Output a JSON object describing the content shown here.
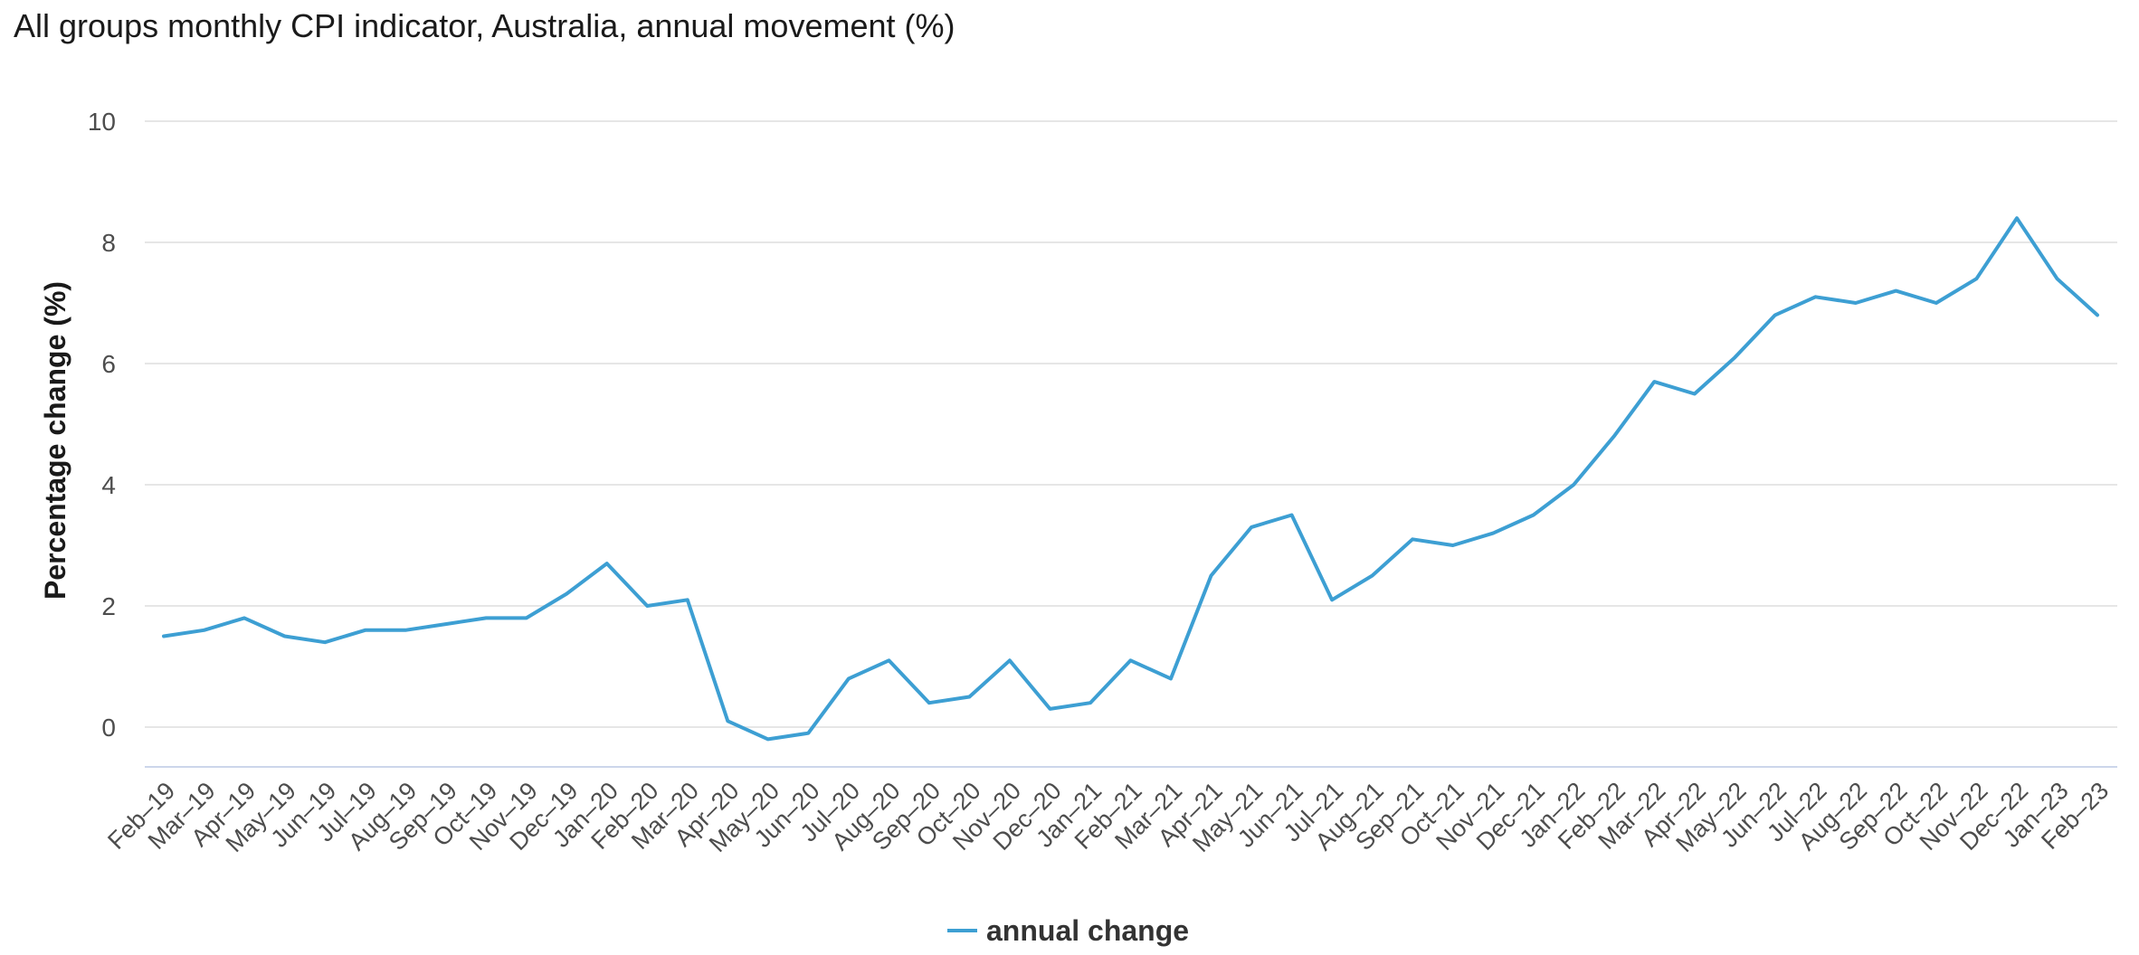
{
  "chart_data": {
    "type": "line",
    "title": "All groups monthly CPI indicator, Australia, annual movement (%)",
    "ylabel": "Percentage change (%)",
    "xlabel": "",
    "ylim": [
      -0.6,
      10
    ],
    "yticks": [
      0,
      2,
      4,
      6,
      8,
      10
    ],
    "grid": true,
    "legend_position": "bottom-center",
    "categories": [
      "Feb–19",
      "Mar–19",
      "Apr–19",
      "May–19",
      "Jun–19",
      "Jul–19",
      "Aug–19",
      "Sep–19",
      "Oct–19",
      "Nov–19",
      "Dec–19",
      "Jan–20",
      "Feb–20",
      "Mar–20",
      "Apr–20",
      "May–20",
      "Jun–20",
      "Jul–20",
      "Aug–20",
      "Sep–20",
      "Oct–20",
      "Nov–20",
      "Dec–20",
      "Jan–21",
      "Feb–21",
      "Mar–21",
      "Apr–21",
      "May–21",
      "Jun–21",
      "Jul–21",
      "Aug–21",
      "Sep–21",
      "Oct–21",
      "Nov–21",
      "Dec–21",
      "Jan–22",
      "Feb–22",
      "Mar–22",
      "Apr–22",
      "May–22",
      "Jun–22",
      "Jul–22",
      "Aug–22",
      "Sep–22",
      "Oct–22",
      "Nov–22",
      "Dec–22",
      "Jan–23",
      "Feb–23"
    ],
    "series": [
      {
        "name": "annual change",
        "color": "#3d9fd3",
        "values": [
          1.5,
          1.6,
          1.8,
          1.5,
          1.4,
          1.6,
          1.6,
          1.7,
          1.8,
          1.8,
          2.2,
          2.7,
          2.0,
          2.1,
          0.1,
          -0.2,
          -0.1,
          0.8,
          1.1,
          0.4,
          0.5,
          1.1,
          0.3,
          0.4,
          1.1,
          0.8,
          2.5,
          3.3,
          3.5,
          2.1,
          2.5,
          3.1,
          3.0,
          3.2,
          3.5,
          4.0,
          4.8,
          5.7,
          5.5,
          6.1,
          6.8,
          7.1,
          7.0,
          7.2,
          7.0,
          7.4,
          8.4,
          7.4,
          6.8
        ]
      }
    ]
  }
}
